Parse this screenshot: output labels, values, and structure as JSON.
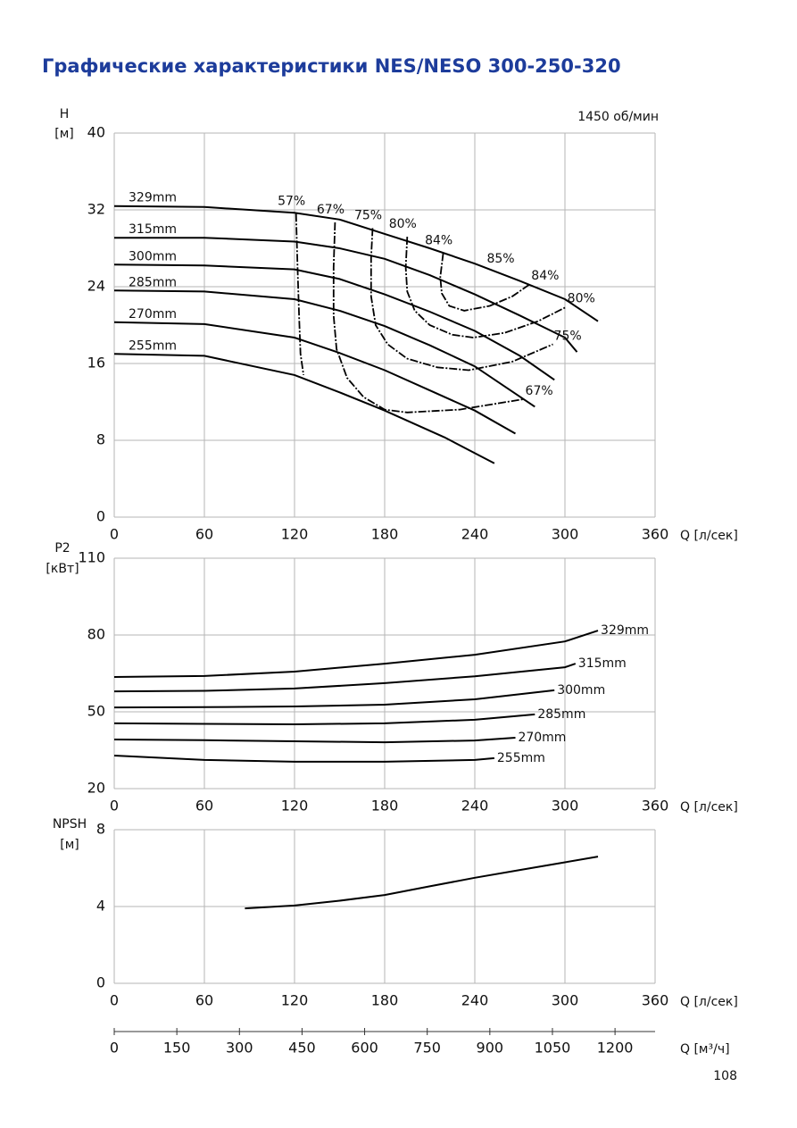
{
  "title": "Графические характеристики NES/NESO 300-250-320",
  "page_number": "108",
  "chart_data": [
    {
      "type": "line",
      "y_label": [
        "H",
        "[м]"
      ],
      "x_label": "Q [л/сек]",
      "speed": "1450 об/мин",
      "efficiency_label": "85%",
      "xlim": [
        0,
        360
      ],
      "ylim": [
        0,
        40
      ],
      "xticks": [
        0,
        60,
        120,
        180,
        240,
        300,
        360
      ],
      "yticks": [
        0,
        8,
        16,
        24,
        32,
        40
      ],
      "grid": true,
      "series": [
        {
          "name": "329mm",
          "color": "#000000",
          "x": [
            0,
            60,
            120,
            150,
            180,
            210,
            240,
            270,
            300,
            322
          ],
          "values": [
            32.4,
            32.3,
            31.7,
            31.0,
            29.5,
            28.0,
            26.4,
            24.6,
            22.7,
            20.4
          ]
        },
        {
          "name": "315mm",
          "color": "#000000",
          "x": [
            0,
            60,
            120,
            150,
            180,
            210,
            240,
            270,
            300,
            308
          ],
          "values": [
            29.1,
            29.1,
            28.7,
            28.0,
            26.9,
            25.2,
            23.2,
            21.0,
            18.7,
            17.2
          ]
        },
        {
          "name": "300mm",
          "color": "#000000",
          "x": [
            0,
            60,
            120,
            150,
            180,
            210,
            240,
            270,
            293
          ],
          "values": [
            26.3,
            26.2,
            25.8,
            24.8,
            23.2,
            21.4,
            19.4,
            16.8,
            14.3
          ]
        },
        {
          "name": "285mm",
          "color": "#000000",
          "x": [
            0,
            60,
            120,
            150,
            180,
            210,
            240,
            280
          ],
          "values": [
            23.6,
            23.5,
            22.7,
            21.5,
            19.9,
            17.9,
            15.7,
            11.5
          ]
        },
        {
          "name": "270mm",
          "color": "#000000",
          "x": [
            0,
            60,
            120,
            150,
            180,
            210,
            240,
            267
          ],
          "values": [
            20.3,
            20.1,
            18.7,
            17.1,
            15.3,
            13.2,
            11.1,
            8.7
          ]
        },
        {
          "name": "255mm",
          "color": "#000000",
          "x": [
            0,
            60,
            120,
            150,
            180,
            220,
            253
          ],
          "values": [
            17.0,
            16.8,
            14.8,
            13.0,
            11.1,
            8.3,
            5.6
          ]
        }
      ],
      "efficiency_curves": [
        {
          "name": "57%",
          "x": [
            121,
            122,
            123,
            124,
            126
          ],
          "values": [
            31.6,
            26,
            21,
            17,
            14.8
          ]
        },
        {
          "name": "67%",
          "x": [
            147,
            146,
            146,
            148,
            155,
            166,
            180,
            195,
            230,
            273
          ],
          "values": [
            30.7,
            26,
            21,
            17.5,
            14.5,
            12.5,
            11.2,
            10.9,
            11.2,
            12.3
          ]
        },
        {
          "name": "75%",
          "x": [
            172,
            171,
            171,
            174,
            182,
            195,
            215,
            236,
            265,
            292
          ],
          "values": [
            30.1,
            27,
            23,
            20,
            18,
            16.5,
            15.6,
            15.3,
            16.2,
            18.0
          ]
        },
        {
          "name": "80%",
          "x": [
            195,
            194,
            195,
            200,
            210,
            225,
            239,
            260,
            282,
            301
          ],
          "values": [
            29.2,
            26,
            23.5,
            21.5,
            20,
            19,
            18.7,
            19.2,
            20.4,
            21.9
          ]
        },
        {
          "name": "84%",
          "x": [
            219,
            217,
            218,
            223,
            233,
            250,
            265,
            277
          ],
          "values": [
            27.5,
            25,
            23.3,
            22,
            21.5,
            22,
            23,
            24.3
          ]
        }
      ]
    },
    {
      "type": "line",
      "y_label": [
        "P2",
        "[кВт]"
      ],
      "x_label": "Q [л/сек]",
      "xlim": [
        0,
        360
      ],
      "ylim": [
        20,
        110
      ],
      "xticks": [
        0,
        60,
        120,
        180,
        240,
        300,
        360
      ],
      "yticks": [
        20,
        50,
        80,
        110
      ],
      "grid": true,
      "series": [
        {
          "name": "329mm",
          "color": "#000000",
          "x": [
            0,
            60,
            120,
            180,
            240,
            300,
            322
          ],
          "values": [
            63.6,
            64.0,
            65.7,
            68.8,
            72.3,
            77.5,
            81.7
          ]
        },
        {
          "name": "315mm",
          "color": "#000000",
          "x": [
            0,
            60,
            120,
            180,
            240,
            300,
            307
          ],
          "values": [
            58.0,
            58.2,
            59.1,
            61.2,
            63.9,
            67.4,
            68.8
          ]
        },
        {
          "name": "300mm",
          "color": "#000000",
          "x": [
            0,
            60,
            120,
            180,
            240,
            293
          ],
          "values": [
            51.7,
            51.8,
            52.1,
            52.8,
            54.9,
            58.4
          ]
        },
        {
          "name": "285mm",
          "color": "#000000",
          "x": [
            0,
            60,
            120,
            180,
            240,
            280
          ],
          "values": [
            45.5,
            45.3,
            45.1,
            45.5,
            46.9,
            49.0
          ]
        },
        {
          "name": "270mm",
          "color": "#000000",
          "x": [
            0,
            60,
            120,
            180,
            240,
            267
          ],
          "values": [
            39.2,
            38.9,
            38.5,
            38.1,
            38.8,
            39.9
          ]
        },
        {
          "name": "255mm",
          "color": "#000000",
          "x": [
            0,
            60,
            120,
            180,
            240,
            253
          ],
          "values": [
            32.9,
            31.2,
            30.5,
            30.5,
            31.2,
            31.9
          ]
        }
      ]
    },
    {
      "type": "line",
      "y_label": [
        "NPSH",
        "[м]"
      ],
      "x_label": "Q [л/сек]",
      "xlim": [
        0,
        360
      ],
      "ylim": [
        0,
        8
      ],
      "xticks": [
        0,
        60,
        120,
        180,
        240,
        300,
        360
      ],
      "yticks": [
        0,
        4,
        8
      ],
      "grid": true,
      "series": [
        {
          "color": "#000000",
          "x": [
            87,
            120,
            150,
            180,
            210,
            240,
            270,
            300,
            322
          ],
          "values": [
            3.9,
            4.05,
            4.3,
            4.6,
            5.05,
            5.5,
            5.9,
            6.3,
            6.6
          ]
        }
      ]
    },
    {
      "type": "axis",
      "x_label": "Q [м³/ч]",
      "xlim": [
        0,
        1296
      ],
      "xticks": [
        0,
        150,
        300,
        450,
        600,
        750,
        900,
        1050,
        1200
      ]
    }
  ]
}
